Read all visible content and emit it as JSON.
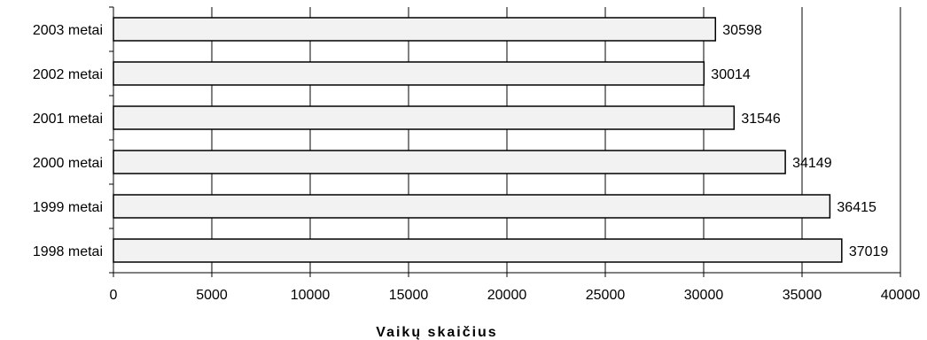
{
  "chart_data": {
    "type": "bar",
    "orientation": "horizontal",
    "categories": [
      "2003 metai",
      "2002 metai",
      "2001 metai",
      "2000 metai",
      "1999 metai",
      "1998 metai"
    ],
    "values": [
      30598,
      30014,
      31546,
      34149,
      36415,
      37019
    ],
    "data_labels": [
      "30598",
      "30014",
      "31546",
      "34149",
      "36415",
      "37019"
    ],
    "xlim": [
      0,
      40000
    ],
    "x_ticks": [
      0,
      5000,
      10000,
      15000,
      20000,
      25000,
      30000,
      35000,
      40000
    ],
    "x_tick_labels": [
      "0",
      "5000",
      "10000",
      "15000",
      "20000",
      "25000",
      "30000",
      "35000",
      "40000"
    ],
    "xlabel": "Vaikų skaičius",
    "title": "",
    "grid": true,
    "legend": false,
    "bar_fill": "#f2f2f2",
    "bar_stroke": "#000000",
    "grid_color": "#000000"
  }
}
